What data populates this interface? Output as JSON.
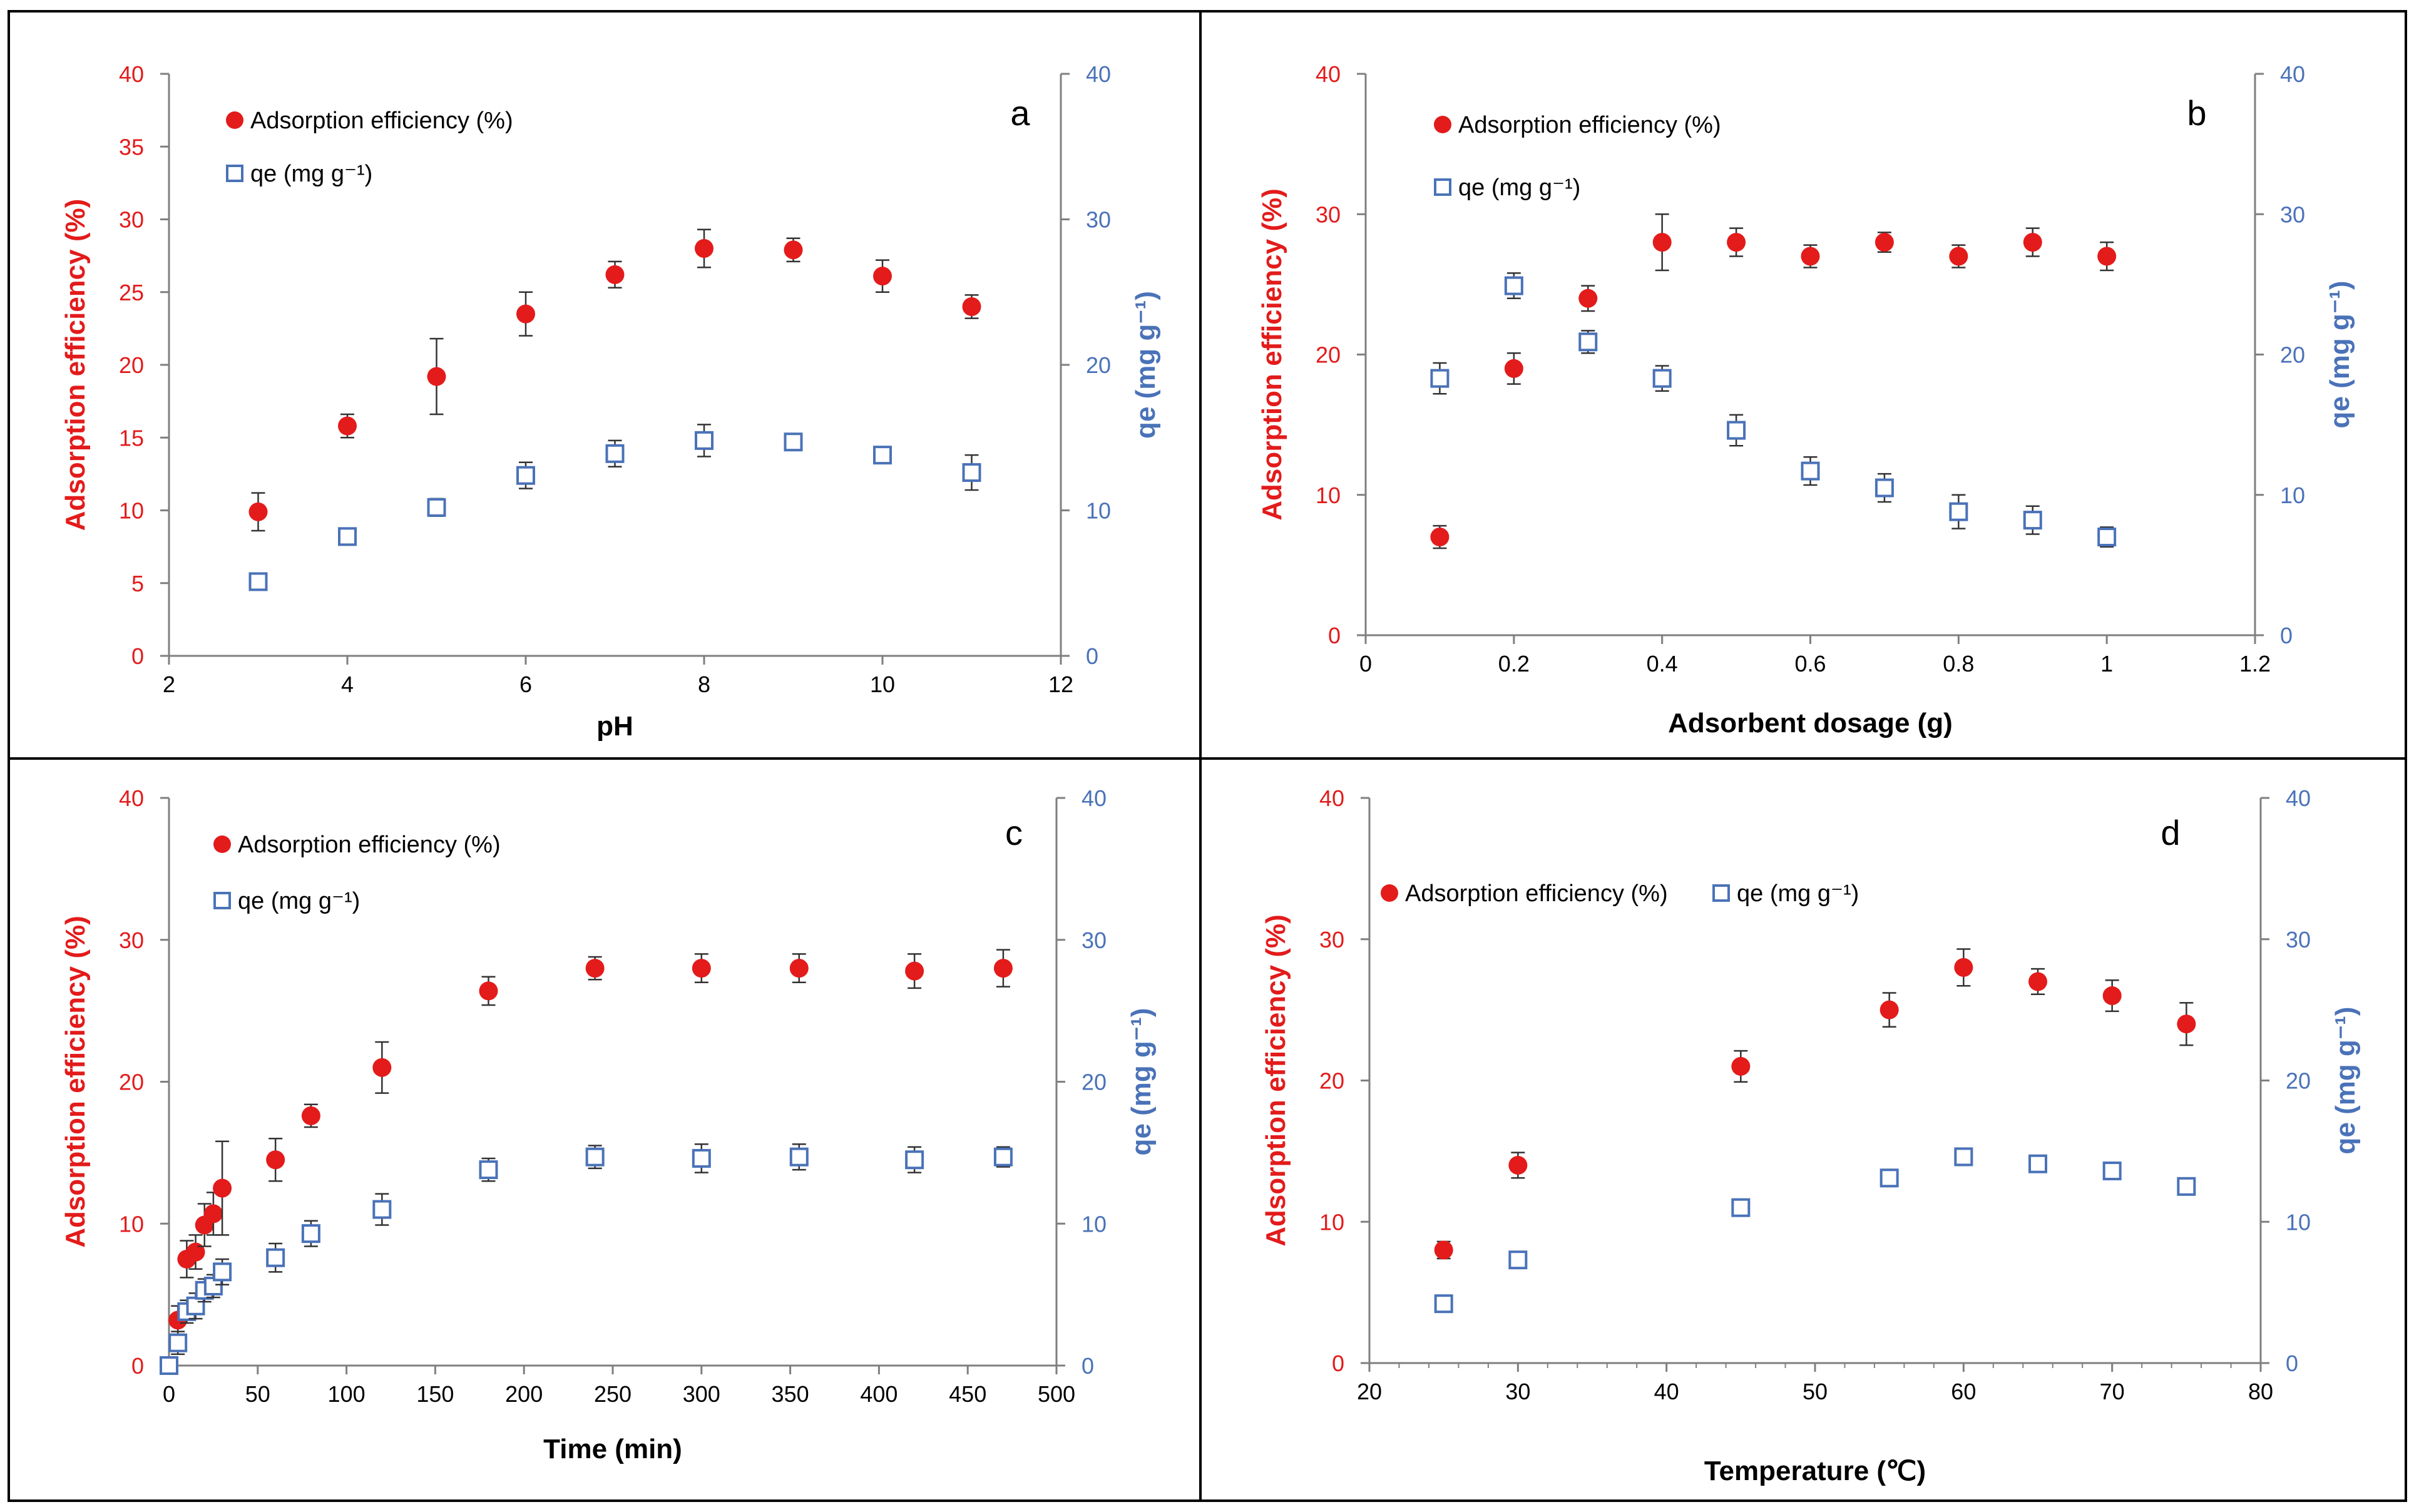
{
  "colors": {
    "red": "#e31b1b",
    "blue": "#4a72b8",
    "axis": "#7f7f7f",
    "text": "#000000"
  },
  "chart_data": [
    {
      "id": "a",
      "type": "scatter",
      "panel_label": "a",
      "xlabel": "pH",
      "ylabel_left": "Adsorption efficiency (%)",
      "ylabel_right": "qe (mg g⁻¹)",
      "xlim": [
        2,
        12
      ],
      "xticks": [
        2,
        4,
        6,
        8,
        10,
        12
      ],
      "ylim_left": [
        0,
        40
      ],
      "yticks_left": [
        0,
        5,
        10,
        15,
        20,
        25,
        30,
        35,
        40
      ],
      "ylim_right": [
        0,
        40
      ],
      "yticks_right": [
        0,
        10,
        20,
        30,
        40
      ],
      "legend_layout": "stacked",
      "series": [
        {
          "name": "Adsorption efficiency (%)",
          "axis": "left",
          "marker": "circle",
          "x": [
            3,
            4,
            5,
            6,
            7,
            8,
            9,
            10,
            11
          ],
          "y": [
            9.9,
            15.8,
            19.2,
            23.5,
            26.2,
            28.0,
            27.9,
            26.1,
            24.0
          ],
          "err": [
            1.3,
            0.8,
            2.6,
            1.5,
            0.9,
            1.3,
            0.8,
            1.1,
            0.8
          ]
        },
        {
          "name": "qe (mg g⁻¹)",
          "axis": "right",
          "marker": "square",
          "x": [
            3,
            4,
            5,
            6,
            7,
            8,
            9,
            10,
            11
          ],
          "y": [
            5.1,
            8.2,
            10.2,
            12.4,
            13.9,
            14.8,
            14.7,
            13.8,
            12.6
          ],
          "err": [
            0.4,
            0.5,
            0.6,
            0.9,
            0.9,
            1.1,
            0.5,
            0.4,
            1.2
          ]
        }
      ]
    },
    {
      "id": "b",
      "type": "scatter",
      "panel_label": "b",
      "xlabel": "Adsorbent dosage (g)",
      "ylabel_left": "Adsorption efficiency (%)",
      "ylabel_right": "qe (mg g⁻¹)",
      "xlim": [
        0,
        1.2
      ],
      "xticks": [
        0,
        0.2,
        0.4,
        0.6,
        0.8,
        1,
        1.2
      ],
      "ylim_left": [
        0,
        40
      ],
      "yticks_left": [
        0,
        10,
        20,
        30,
        40
      ],
      "ylim_right": [
        0,
        40
      ],
      "yticks_right": [
        0,
        10,
        20,
        30,
        40
      ],
      "legend_layout": "stacked",
      "series": [
        {
          "name": "Adsorption efficiency (%)",
          "axis": "left",
          "marker": "circle",
          "x": [
            0.1,
            0.2,
            0.3,
            0.4,
            0.5,
            0.6,
            0.7,
            0.8,
            0.9,
            1.0
          ],
          "y": [
            7.0,
            19.0,
            24.0,
            28.0,
            28.0,
            27.0,
            28.0,
            27.0,
            28.0,
            27.0
          ],
          "err": [
            0.8,
            1.1,
            0.9,
            2.0,
            1.0,
            0.8,
            0.7,
            0.8,
            1.0,
            1.0
          ]
        },
        {
          "name": "qe (mg g⁻¹)",
          "axis": "right",
          "marker": "square",
          "x": [
            0.1,
            0.2,
            0.3,
            0.4,
            0.5,
            0.6,
            0.7,
            0.8,
            0.9,
            1.0
          ],
          "y": [
            18.3,
            24.9,
            20.9,
            18.3,
            14.6,
            11.7,
            10.5,
            8.8,
            8.2,
            7.0
          ],
          "err": [
            1.1,
            0.9,
            0.8,
            0.9,
            1.1,
            1.0,
            1.0,
            1.2,
            1.0,
            0.7
          ]
        }
      ]
    },
    {
      "id": "c",
      "type": "scatter",
      "panel_label": "c",
      "xlabel": "Time (min)",
      "ylabel_left": "Adsorption efficiency (%)",
      "ylabel_right": "qe (mg g⁻¹)",
      "xlim": [
        0,
        500
      ],
      "xticks": [
        0,
        50,
        100,
        150,
        200,
        250,
        300,
        350,
        400,
        450,
        500
      ],
      "ylim_left": [
        0,
        40
      ],
      "yticks_left": [
        0,
        10,
        20,
        30,
        40
      ],
      "ylim_right": [
        0,
        40
      ],
      "yticks_right": [
        0,
        10,
        20,
        30,
        40
      ],
      "legend_layout": "stacked",
      "series": [
        {
          "name": "Adsorption efficiency (%)",
          "axis": "left",
          "marker": "circle",
          "x": [
            0,
            5,
            10,
            15,
            20,
            25,
            30,
            60,
            80,
            120,
            180,
            240,
            300,
            355,
            420,
            470
          ],
          "y": [
            0,
            3.2,
            7.5,
            8.0,
            9.9,
            10.7,
            12.5,
            14.5,
            17.6,
            21.0,
            26.4,
            28.0,
            28.0,
            28.0,
            27.8,
            28.0
          ],
          "err": [
            0,
            1.0,
            1.3,
            1.2,
            1.5,
            1.5,
            3.3,
            1.5,
            0.8,
            1.8,
            1.0,
            0.8,
            1.0,
            1.0,
            1.2,
            1.3
          ]
        },
        {
          "name": "qe (mg g⁻¹)",
          "axis": "right",
          "marker": "square",
          "x": [
            0,
            5,
            10,
            15,
            20,
            25,
            30,
            60,
            80,
            120,
            180,
            240,
            300,
            355,
            420,
            470
          ],
          "y": [
            0,
            1.6,
            3.8,
            4.2,
            5.3,
            5.6,
            6.6,
            7.6,
            9.3,
            11.0,
            13.8,
            14.7,
            14.6,
            14.7,
            14.5,
            14.7
          ],
          "err": [
            0,
            0.8,
            0.8,
            0.9,
            0.8,
            0.8,
            0.9,
            1.0,
            0.9,
            1.1,
            0.8,
            0.8,
            1.0,
            0.9,
            0.9,
            0.7
          ]
        }
      ]
    },
    {
      "id": "d",
      "type": "scatter",
      "panel_label": "d",
      "xlabel": "Temperature (℃)",
      "ylabel_left": "Adsorption efficiency (%)",
      "ylabel_right": "qe (mg g⁻¹)",
      "xlim": [
        20,
        80
      ],
      "xticks": [
        20,
        30,
        40,
        50,
        60,
        70,
        80
      ],
      "ylim_left": [
        0,
        40
      ],
      "yticks_left": [
        0,
        10,
        20,
        30,
        40
      ],
      "ylim_right": [
        0,
        40
      ],
      "yticks_right": [
        0,
        10,
        20,
        30,
        40
      ],
      "legend_layout": "inline",
      "series": [
        {
          "name": "Adsorption efficiency (%)",
          "axis": "left",
          "marker": "circle",
          "x": [
            25,
            30,
            45,
            55,
            60,
            65,
            70,
            75
          ],
          "y": [
            8.0,
            14.0,
            21.0,
            25.0,
            28.0,
            27.0,
            26.0,
            24.0
          ],
          "err": [
            0.6,
            0.9,
            1.1,
            1.2,
            1.3,
            0.9,
            1.1,
            1.5
          ]
        },
        {
          "name": "qe (mg g⁻¹)",
          "axis": "right",
          "marker": "square",
          "x": [
            25,
            30,
            45,
            55,
            60,
            65,
            70,
            75
          ],
          "y": [
            4.2,
            7.3,
            11.0,
            13.1,
            14.6,
            14.1,
            13.6,
            12.5
          ],
          "err": [
            0.5,
            0.5,
            0.5,
            0.6,
            0.6,
            0.5,
            0.6,
            0.5
          ]
        }
      ]
    }
  ]
}
